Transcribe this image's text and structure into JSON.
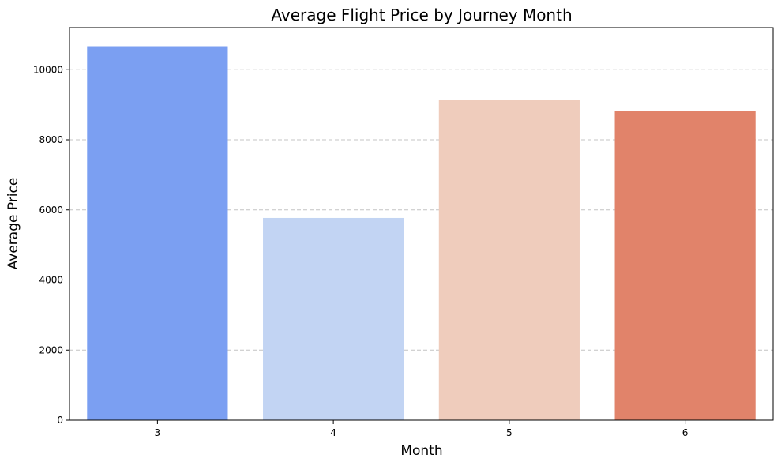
{
  "chart_data": {
    "type": "bar",
    "title": "Average Flight Price by Journey Month",
    "xlabel": "Month",
    "ylabel": "Average Price",
    "categories": [
      "3",
      "4",
      "5",
      "6"
    ],
    "values": [
      10670,
      5770,
      9130,
      8830
    ],
    "colors": [
      "#7b9ff2",
      "#c2d4f3",
      "#efccbc",
      "#e1836a"
    ],
    "ylim": [
      0,
      11200
    ],
    "yticks": [
      0,
      2000,
      4000,
      6000,
      8000,
      10000
    ],
    "grid": "y, dashed",
    "legend": "none"
  }
}
